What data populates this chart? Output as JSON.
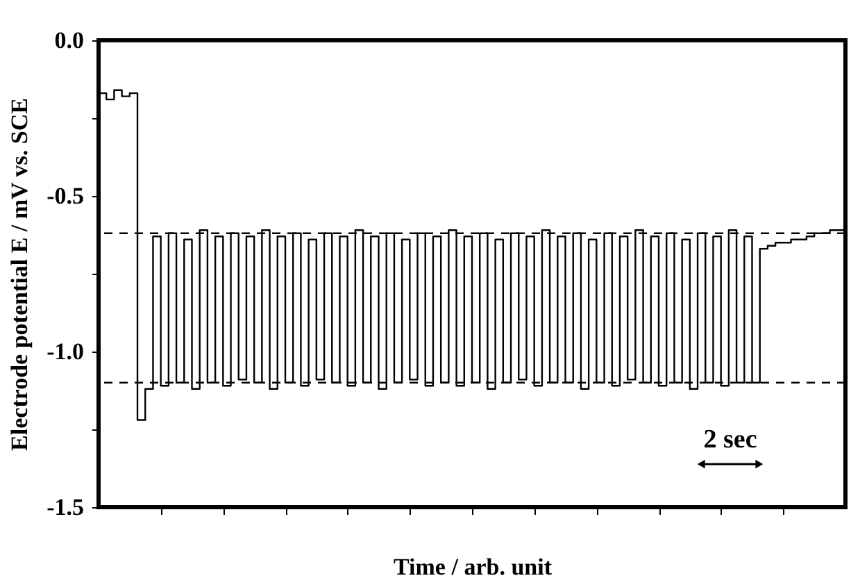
{
  "chart_data": {
    "type": "step",
    "xlabel": "Time / arb. unit",
    "ylabel": "Electrode potential E / mV vs. SCE",
    "categories": [
      null,
      null,
      null,
      null,
      null,
      null,
      null,
      null,
      null,
      null,
      null,
      null,
      null,
      null,
      null,
      null,
      null,
      null,
      null,
      null,
      null,
      null,
      null,
      null,
      null,
      null,
      null,
      null,
      null,
      null,
      null,
      null,
      null,
      null,
      null,
      null,
      null,
      null,
      null,
      null,
      null,
      null,
      null,
      null,
      null,
      null,
      null,
      null,
      null,
      null,
      null,
      null,
      null,
      null,
      null,
      null,
      null,
      null,
      null,
      null,
      null,
      null,
      null,
      null,
      null,
      null,
      null,
      null,
      null,
      null,
      null,
      null,
      null,
      null,
      null,
      null,
      null,
      null,
      null,
      null,
      null,
      null,
      null,
      null,
      null,
      null,
      null,
      null,
      null,
      null,
      null,
      null,
      null,
      null,
      null,
      null,
      null
    ],
    "ylim": [
      -1.5,
      0
    ],
    "yticks": [
      {
        "value": 0,
        "label": "0.0"
      },
      {
        "value": -0.25,
        "label": null
      },
      -0.5,
      {
        "value": -0.75,
        "label": null
      },
      {
        "value": -1,
        "label": "-1.0"
      },
      {
        "value": -1.25,
        "label": null
      },
      -1.5
    ],
    "grid": false,
    "line_style": "solid",
    "marker": "none",
    "series": [
      {
        "color": "#000000",
        "values": [
          -0.17,
          -0.19,
          -0.16,
          -0.18,
          -0.17,
          -1.22,
          -1.12,
          -0.63,
          -1.11,
          -0.62,
          -1.1,
          -0.64,
          -1.12,
          -0.61,
          -1.1,
          -0.63,
          -1.11,
          -0.62,
          -1.09,
          -0.63,
          -1.1,
          -0.61,
          -1.12,
          -0.63,
          -1.1,
          -0.62,
          -1.11,
          -0.64,
          -1.09,
          -0.62,
          -1.1,
          -0.63,
          -1.11,
          -0.61,
          -1.1,
          -0.63,
          -1.12,
          -0.62,
          -1.1,
          -0.64,
          -1.09,
          -0.62,
          -1.11,
          -0.63,
          -1.1,
          -0.61,
          -1.11,
          -0.63,
          -1.1,
          -0.62,
          -1.12,
          -0.64,
          -1.1,
          -0.62,
          -1.09,
          -0.63,
          -1.11,
          -0.61,
          -1.1,
          -0.63,
          -1.1,
          -0.62,
          -1.12,
          -0.64,
          -1.1,
          -0.62,
          -1.11,
          -0.63,
          -1.09,
          -0.61,
          -1.1,
          -0.63,
          -1.11,
          -0.62,
          -1.1,
          -0.64,
          -1.12,
          -0.62,
          -1.1,
          -0.63,
          -1.11,
          -0.61,
          -1.1,
          -0.63,
          -1.1,
          -0.67,
          -0.66,
          -0.65,
          -0.65,
          -0.64,
          -0.64,
          -0.63,
          -0.62,
          -0.62,
          -0.61,
          -0.61,
          -0.6
        ]
      }
    ],
    "ref_lines": [
      {
        "axis": "y",
        "value": -0.62,
        "color": "#000000",
        "line_style": "dashed"
      },
      {
        "axis": "y",
        "value": -1.1,
        "color": "#000000",
        "line_style": "dashed"
      }
    ],
    "annotations": [
      "2 sec"
    ]
  }
}
